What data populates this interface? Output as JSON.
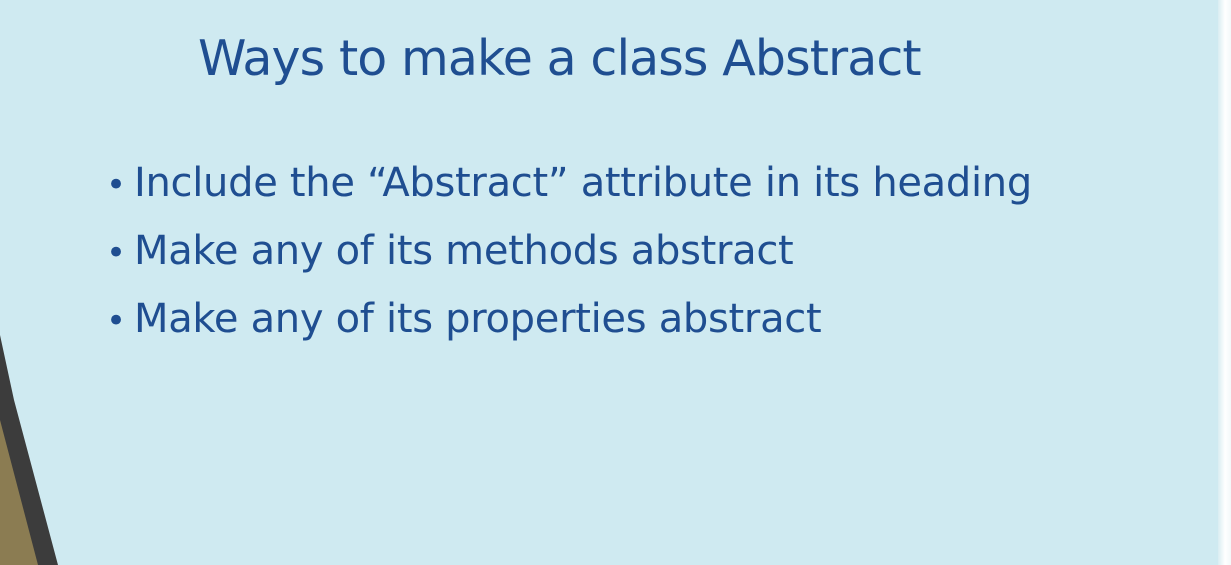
{
  "slide": {
    "title": "Ways to make a class Abstract",
    "bullets": [
      {
        "label": "Include the “Abstract” attribute in its heading"
      },
      {
        "label": "Make any of its methods abstract"
      },
      {
        "label": "Make any of its properties abstract"
      }
    ]
  },
  "colors": {
    "background": "#cfeaf1",
    "text": "#1f4e91",
    "accent_dark": "#3a3a3a",
    "accent_olive": "#8a7a4e"
  }
}
